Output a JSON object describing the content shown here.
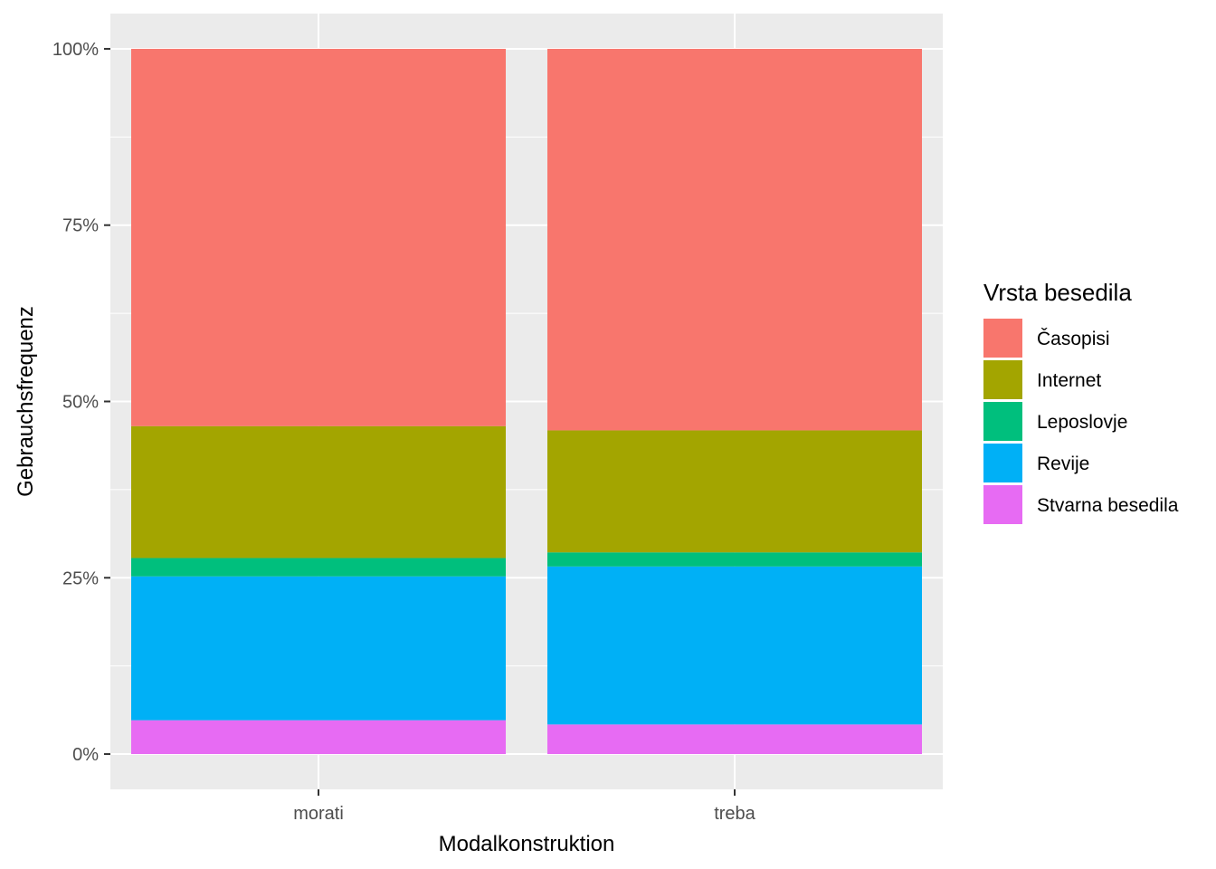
{
  "chart_data": {
    "type": "bar",
    "stacked": "percent",
    "categories": [
      "morati",
      "treba"
    ],
    "series": [
      {
        "name": "Časopisi",
        "color": "#F8766D",
        "values": [
          53.5,
          54.1
        ]
      },
      {
        "name": "Internet",
        "color": "#A3A500",
        "values": [
          18.7,
          17.3
        ]
      },
      {
        "name": "Leposlovje",
        "color": "#00BF7D",
        "values": [
          2.6,
          2.0
        ]
      },
      {
        "name": "Revije",
        "color": "#00B0F6",
        "values": [
          20.4,
          22.4
        ]
      },
      {
        "name": "Stvarna besedila",
        "color": "#E76BF3",
        "values": [
          4.8,
          4.2
        ]
      }
    ],
    "y_ticks": [
      "0%",
      "25%",
      "50%",
      "75%",
      "100%"
    ],
    "y_tick_values": [
      0,
      25,
      50,
      75,
      100
    ],
    "ylim": [
      -5,
      105
    ],
    "xlabel": "Modalkonstruktion",
    "ylabel": "Gebrauchsfrequenz",
    "legend_title": "Vrsta besedila",
    "legend_position": "right",
    "grid": true,
    "panel_background": "#EBEBEB",
    "grid_color": "#FFFFFF"
  }
}
